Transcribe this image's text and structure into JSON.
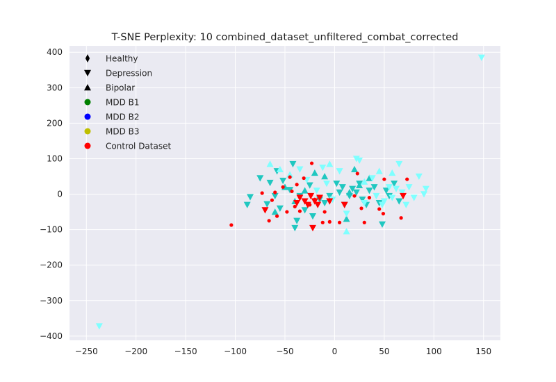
{
  "chart_data": {
    "type": "scatter",
    "title": "T-SNE Perplexity: 10 combined_dataset_unfiltered_combat_corrected",
    "xlabel": "",
    "ylabel": "",
    "xlim": [
      -267,
      167
    ],
    "ylim": [
      -412,
      418
    ],
    "xticks": [
      -250,
      -200,
      -150,
      -100,
      -50,
      0,
      50,
      100,
      150
    ],
    "yticks": [
      -400,
      -300,
      -200,
      -100,
      0,
      100,
      200,
      300,
      400
    ],
    "xtick_labels": [
      "−250",
      "−200",
      "−150",
      "−100",
      "−50",
      "0",
      "50",
      "100",
      "150"
    ],
    "ytick_labels": [
      "−400",
      "−300",
      "−200",
      "−100",
      "0",
      "100",
      "200",
      "300",
      "400"
    ],
    "grid": true,
    "background": "#eaeaf2",
    "legend": {
      "placement": "top-left",
      "entries": [
        {
          "label": "Healthy",
          "marker": "diamond",
          "color": "#000000"
        },
        {
          "label": "Depression",
          "marker": "triangle-down",
          "color": "#000000"
        },
        {
          "label": "Bipolar",
          "marker": "triangle-up",
          "color": "#000000"
        },
        {
          "label": "MDD B1",
          "marker": "circle",
          "color": "#008000"
        },
        {
          "label": "MDD B2",
          "marker": "circle",
          "color": "#0000ff"
        },
        {
          "label": "MDD B3",
          "marker": "circle",
          "color": "#bfbf00"
        },
        {
          "label": "Control Dataset",
          "marker": "circle",
          "color": "#ff0000"
        }
      ]
    },
    "series": [
      {
        "marker": "triangle-down",
        "color": "#20c7c0",
        "size": 5,
        "points": [
          [
            -88,
            -30
          ],
          [
            -85,
            -8
          ],
          [
            -75,
            45
          ],
          [
            -68,
            -28
          ],
          [
            -65,
            32
          ],
          [
            -60,
            -5
          ],
          [
            -58,
            65
          ],
          [
            -55,
            -40
          ],
          [
            -52,
            38
          ],
          [
            -45,
            12
          ],
          [
            -42,
            85
          ],
          [
            -40,
            -95
          ],
          [
            -38,
            -75
          ],
          [
            -35,
            -5
          ],
          [
            -30,
            -45
          ],
          [
            -25,
            25
          ],
          [
            -22,
            -62
          ],
          [
            -15,
            -15
          ],
          [
            -10,
            -25
          ],
          [
            -5,
            -5
          ],
          [
            2,
            30
          ],
          [
            5,
            5
          ],
          [
            8,
            20
          ],
          [
            10,
            -30
          ],
          [
            15,
            -5
          ],
          [
            18,
            15
          ],
          [
            22,
            5
          ],
          [
            25,
            30
          ],
          [
            28,
            -15
          ],
          [
            32,
            -30
          ],
          [
            35,
            10
          ],
          [
            40,
            20
          ],
          [
            45,
            -25
          ],
          [
            48,
            -85
          ],
          [
            52,
            10
          ],
          [
            55,
            -5
          ],
          [
            60,
            30
          ],
          [
            65,
            -20
          ]
        ]
      },
      {
        "marker": "triangle-up",
        "color": "#20c7c0",
        "size": 5,
        "points": [
          [
            -60,
            -50
          ],
          [
            -50,
            20
          ],
          [
            -40,
            -20
          ],
          [
            -30,
            10
          ],
          [
            -20,
            60
          ],
          [
            -10,
            50
          ],
          [
            12,
            -70
          ],
          [
            15,
            5
          ],
          [
            20,
            70
          ],
          [
            25,
            25
          ],
          [
            35,
            45
          ]
        ]
      },
      {
        "marker": "triangle-down",
        "color": "#7fffff",
        "size": 5,
        "points": [
          [
            -237,
            -372
          ],
          [
            148,
            385
          ],
          [
            -35,
            70
          ],
          [
            -28,
            40
          ],
          [
            -18,
            10
          ],
          [
            -12,
            75
          ],
          [
            -8,
            30
          ],
          [
            -2,
            -15
          ],
          [
            5,
            65
          ],
          [
            12,
            -55
          ],
          [
            22,
            100
          ],
          [
            25,
            95
          ],
          [
            30,
            -25
          ],
          [
            38,
            45
          ],
          [
            42,
            -5
          ],
          [
            48,
            -30
          ],
          [
            50,
            -20
          ],
          [
            55,
            20
          ],
          [
            58,
            -10
          ],
          [
            62,
            15
          ],
          [
            65,
            85
          ],
          [
            68,
            5
          ],
          [
            72,
            -30
          ],
          [
            75,
            20
          ],
          [
            80,
            -10
          ],
          [
            85,
            50
          ],
          [
            90,
            0
          ],
          [
            92,
            15
          ]
        ]
      },
      {
        "marker": "triangle-up",
        "color": "#7fffff",
        "size": 5,
        "points": [
          [
            -65,
            85
          ],
          [
            -55,
            70
          ],
          [
            -45,
            55
          ],
          [
            -5,
            85
          ],
          [
            12,
            -105
          ],
          [
            30,
            35
          ],
          [
            45,
            65
          ],
          [
            58,
            60
          ]
        ]
      },
      {
        "marker": "triangle-down",
        "color": "#ff0000",
        "size": 5,
        "points": [
          [
            -70,
            -45
          ],
          [
            -38,
            -25
          ],
          [
            -35,
            -10
          ],
          [
            -30,
            -20
          ],
          [
            -27,
            -30
          ],
          [
            -24,
            -5
          ],
          [
            -22,
            -95
          ],
          [
            -20,
            -20
          ],
          [
            -17,
            -30
          ],
          [
            -15,
            -10
          ],
          [
            -5,
            -20
          ],
          [
            10,
            -30
          ],
          [
            69,
            -5
          ]
        ]
      },
      {
        "marker": "circle",
        "color": "#ff0000",
        "size": 2.6,
        "points": [
          [
            -104,
            -87
          ],
          [
            -73,
            3
          ],
          [
            -66,
            -75
          ],
          [
            -63,
            -17
          ],
          [
            -60,
            5
          ],
          [
            -58,
            -62
          ],
          [
            -52,
            20
          ],
          [
            -48,
            -50
          ],
          [
            -45,
            48
          ],
          [
            -43,
            8
          ],
          [
            -40,
            -35
          ],
          [
            -38,
            27
          ],
          [
            -35,
            -48
          ],
          [
            -31,
            45
          ],
          [
            -25,
            -30
          ],
          [
            -23,
            87
          ],
          [
            -20,
            -15
          ],
          [
            -12,
            -80
          ],
          [
            -10,
            -50
          ],
          [
            -5,
            -78
          ],
          [
            5,
            -80
          ],
          [
            20,
            -5
          ],
          [
            23,
            58
          ],
          [
            27,
            -40
          ],
          [
            30,
            -80
          ],
          [
            35,
            -10
          ],
          [
            45,
            -42
          ],
          [
            49,
            -55
          ],
          [
            50,
            42
          ],
          [
            67,
            -67
          ],
          [
            73,
            42
          ]
        ]
      }
    ]
  }
}
